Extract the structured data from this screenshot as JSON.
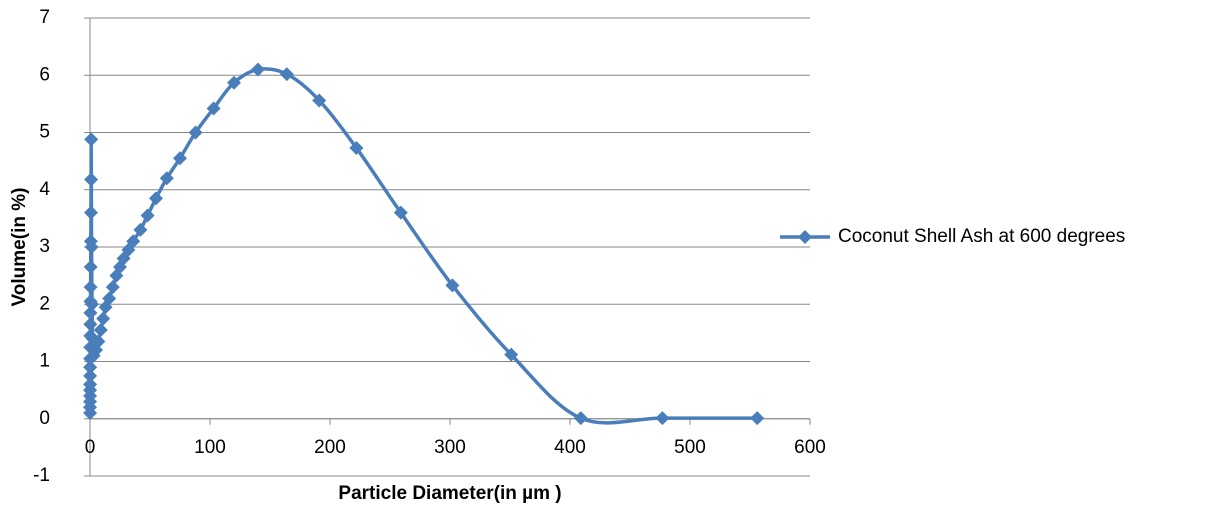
{
  "chart_data": {
    "type": "scatter",
    "smooth": true,
    "x_label": "Particle Diameter(in µm )",
    "y_label": "Volume(in %)",
    "xlim": [
      0,
      600
    ],
    "xticks": [
      0,
      100,
      200,
      300,
      400,
      500,
      600
    ],
    "ylim": [
      -1,
      7
    ],
    "yticks": [
      -1,
      0,
      1,
      2,
      3,
      4,
      5,
      6,
      7
    ],
    "grid": true,
    "legend": "right",
    "series": [
      {
        "name": "Coconut Shell Ash at 600 degrees",
        "color": "#4a7ebb",
        "x": [
          0.02,
          0.03,
          0.04,
          0.05,
          0.06,
          0.08,
          0.1,
          0.12,
          0.15,
          0.2,
          0.25,
          0.3,
          0.35,
          0.4,
          0.5,
          0.6,
          0.7,
          0.8,
          0.9,
          1.0,
          1.3,
          1.7,
          2.2,
          3,
          5,
          7,
          9,
          11,
          13,
          16,
          19,
          22,
          25,
          28,
          32,
          36,
          42,
          48,
          55,
          64,
          75,
          88,
          103,
          120,
          140,
          164,
          191,
          222,
          259,
          302,
          351,
          409,
          477,
          556
        ],
        "values": [
          0.1,
          0.2,
          0.3,
          0.4,
          0.5,
          0.6,
          0.75,
          0.9,
          1.05,
          1.25,
          1.45,
          1.65,
          1.85,
          2.05,
          2.3,
          2.65,
          3.1,
          3.6,
          4.18,
          4.88,
          3.0,
          2.0,
          1.4,
          1.1,
          1.2,
          1.35,
          1.55,
          1.75,
          1.95,
          2.1,
          2.3,
          2.5,
          2.65,
          2.8,
          2.95,
          3.1,
          3.3,
          3.55,
          3.85,
          4.2,
          4.55,
          5.0,
          5.42,
          5.87,
          6.1,
          6.02,
          5.56,
          4.73,
          3.6,
          2.33,
          1.12,
          0.01,
          0.01,
          0.01
        ]
      }
    ]
  }
}
